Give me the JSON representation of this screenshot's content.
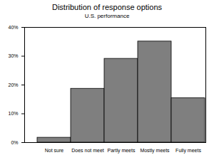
{
  "chart_data": {
    "type": "bar",
    "title": "Distribution of response options",
    "subtitle": "U.S. performance",
    "categories": [
      "Not sure",
      "Does not meet",
      "Partly meets",
      "Mostly meets",
      "Fully meets"
    ],
    "values": [
      1.7,
      18.7,
      29.1,
      35.1,
      15.4
    ],
    "color": "#7f7f7f",
    "ylim": [
      0,
      40
    ],
    "yticks": [
      {
        "value": 0,
        "label": "0%"
      },
      {
        "value": 10,
        "label": "10%"
      },
      {
        "value": 20,
        "label": "20%"
      },
      {
        "value": 30,
        "label": "30%"
      },
      {
        "value": 40,
        "label": "40%"
      }
    ],
    "grid": false
  }
}
